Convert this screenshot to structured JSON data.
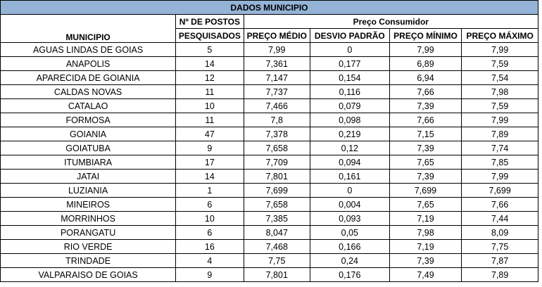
{
  "title": "DADOS MUNICIPIO",
  "headers": {
    "municipio": "MUNICIPIO",
    "postos_line1": "Nº DE POSTOS",
    "postos_line2": "PESQUISADOS",
    "group": "Preço Consumidor",
    "medio": "PREÇO MÉDIO",
    "desvio": "DESVIO PADRÃO",
    "minimo": "PREÇO MÍNIMO",
    "maximo": "PREÇO MÁXIMO"
  },
  "rows": [
    {
      "municipio": "AGUAS LINDAS DE GOIAS",
      "postos": "5",
      "medio": "7,99",
      "desvio": "0",
      "minimo": "7,99",
      "maximo": "7,99"
    },
    {
      "municipio": "ANAPOLIS",
      "postos": "14",
      "medio": "7,361",
      "desvio": "0,177",
      "minimo": "6,89",
      "maximo": "7,59"
    },
    {
      "municipio": "APARECIDA DE GOIANIA",
      "postos": "12",
      "medio": "7,147",
      "desvio": "0,154",
      "minimo": "6,94",
      "maximo": "7,54"
    },
    {
      "municipio": "CALDAS NOVAS",
      "postos": "11",
      "medio": "7,737",
      "desvio": "0,116",
      "minimo": "7,66",
      "maximo": "7,98"
    },
    {
      "municipio": "CATALAO",
      "postos": "10",
      "medio": "7,466",
      "desvio": "0,079",
      "minimo": "7,39",
      "maximo": "7,59"
    },
    {
      "municipio": "FORMOSA",
      "postos": "11",
      "medio": "7,8",
      "desvio": "0,098",
      "minimo": "7,66",
      "maximo": "7,99"
    },
    {
      "municipio": "GOIANIA",
      "postos": "47",
      "medio": "7,378",
      "desvio": "0,219",
      "minimo": "7,15",
      "maximo": "7,89"
    },
    {
      "municipio": "GOIATUBA",
      "postos": "9",
      "medio": "7,658",
      "desvio": "0,12",
      "minimo": "7,39",
      "maximo": "7,74"
    },
    {
      "municipio": "ITUMBIARA",
      "postos": "17",
      "medio": "7,709",
      "desvio": "0,094",
      "minimo": "7,65",
      "maximo": "7,85"
    },
    {
      "municipio": "JATAI",
      "postos": "14",
      "medio": "7,801",
      "desvio": "0,161",
      "minimo": "7,39",
      "maximo": "7,99"
    },
    {
      "municipio": "LUZIANIA",
      "postos": "1",
      "medio": "7,699",
      "desvio": "0",
      "minimo": "7,699",
      "maximo": "7,699"
    },
    {
      "municipio": "MINEIROS",
      "postos": "6",
      "medio": "7,658",
      "desvio": "0,004",
      "minimo": "7,65",
      "maximo": "7,66"
    },
    {
      "municipio": "MORRINHOS",
      "postos": "10",
      "medio": "7,385",
      "desvio": "0,093",
      "minimo": "7,19",
      "maximo": "7,44"
    },
    {
      "municipio": "PORANGATU",
      "postos": "6",
      "medio": "8,047",
      "desvio": "0,05",
      "minimo": "7,98",
      "maximo": "8,09"
    },
    {
      "municipio": "RIO VERDE",
      "postos": "16",
      "medio": "7,468",
      "desvio": "0,166",
      "minimo": "7,19",
      "maximo": "7,75"
    },
    {
      "municipio": "TRINDADE",
      "postos": "4",
      "medio": "7,75",
      "desvio": "0,24",
      "minimo": "7,39",
      "maximo": "7,87"
    },
    {
      "municipio": "VALPARAISO DE GOIAS",
      "postos": "9",
      "medio": "7,801",
      "desvio": "0,176",
      "minimo": "7,49",
      "maximo": "7,89"
    }
  ],
  "colors": {
    "title_bg": "#95b3d7",
    "border": "#000000"
  }
}
